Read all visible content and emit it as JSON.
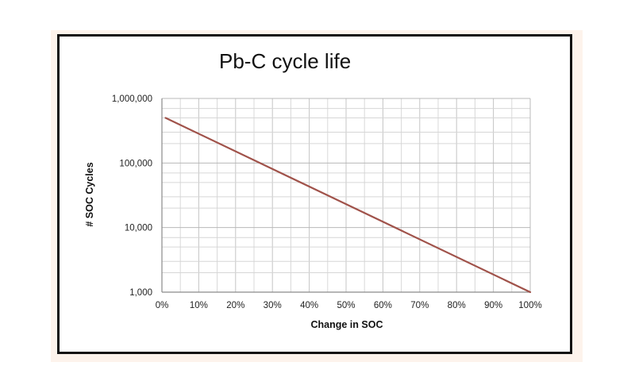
{
  "chart_data": {
    "type": "line",
    "title": "Pb-C cycle life",
    "xlabel": "Change in SOC",
    "ylabel": "# SOC Cycles",
    "y_scale": "log",
    "xlim": [
      0,
      100
    ],
    "ylim": [
      1000,
      1000000
    ],
    "x_ticks": [
      0,
      10,
      20,
      30,
      40,
      50,
      60,
      70,
      80,
      90,
      100
    ],
    "x_tick_labels": [
      "0%",
      "10%",
      "20%",
      "30%",
      "40%",
      "50%",
      "60%",
      "70%",
      "80%",
      "90%",
      "100%"
    ],
    "y_ticks": [
      1000,
      10000,
      100000,
      1000000
    ],
    "y_tick_labels": [
      "1,000",
      "10,000",
      "100,000",
      "1,000,000"
    ],
    "grid": true,
    "line_color": "#a0524a",
    "series": [
      {
        "name": "Pb-C",
        "x": [
          1,
          100
        ],
        "y": [
          500000,
          1000
        ]
      }
    ]
  }
}
